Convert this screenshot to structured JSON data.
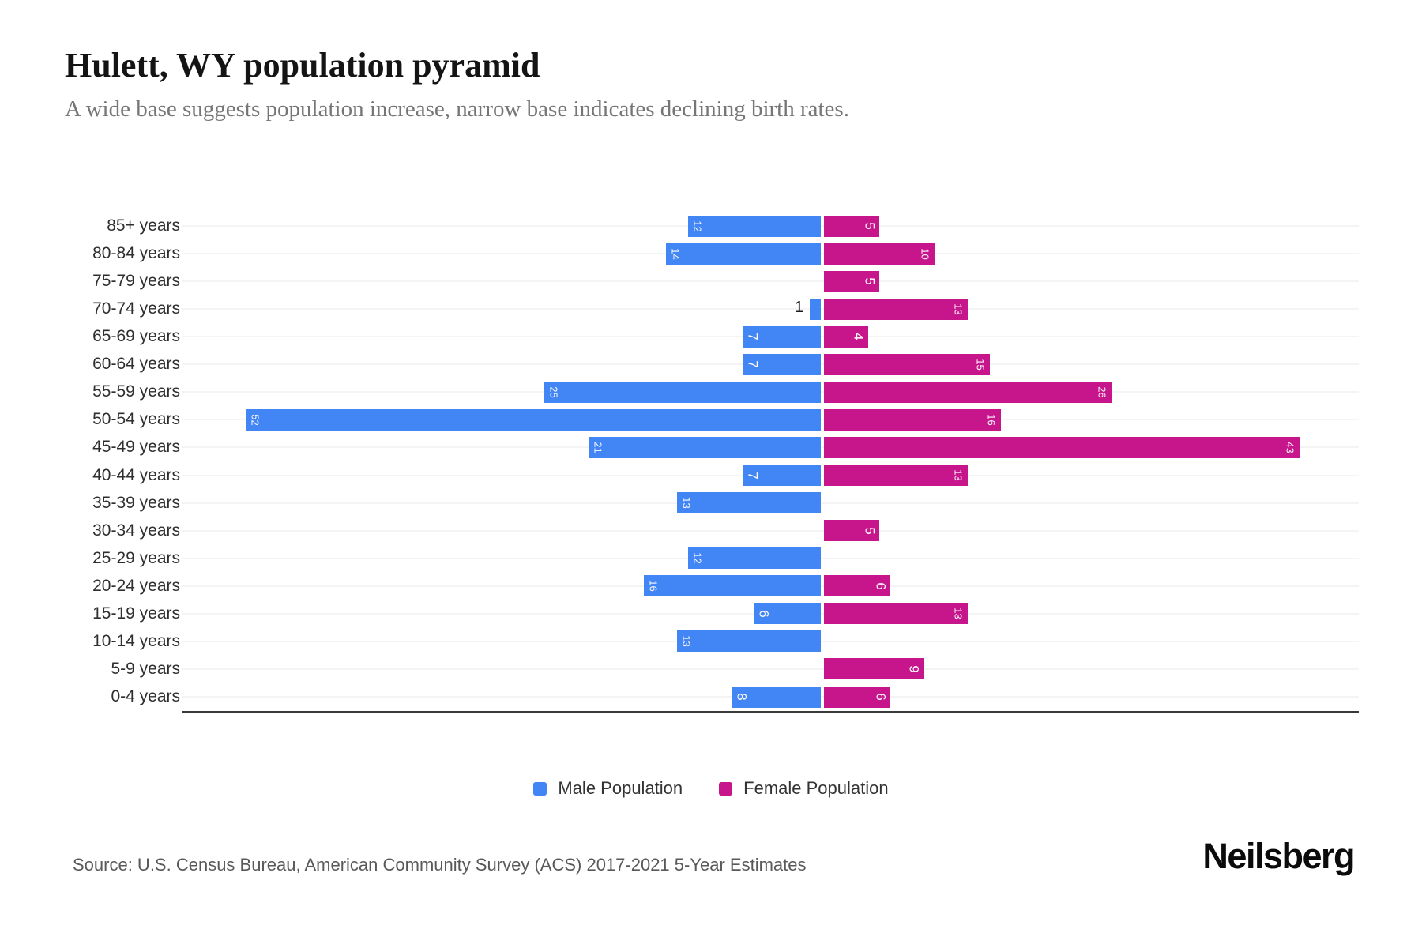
{
  "header": {
    "title": "Hulett, WY population pyramid",
    "subtitle": "A wide base suggests population increase, narrow base indicates declining birth rates."
  },
  "chart_data": {
    "type": "bar",
    "variant": "population-pyramid",
    "orientation": "horizontal, male bars extend left and female bars extend right from a central zero axis",
    "categories": [
      "85+ years",
      "80-84 years",
      "75-79 years",
      "70-74 years",
      "65-69 years",
      "60-64 years",
      "55-59 years",
      "50-54 years",
      "45-49 years",
      "40-44 years",
      "35-39 years",
      "30-34 years",
      "25-29 years",
      "20-24 years",
      "15-19 years",
      "10-14 years",
      "5-9 years",
      "0-4 years"
    ],
    "series": [
      {
        "name": "Male Population",
        "color": "#4285F4",
        "values": [
          12,
          14,
          0,
          1,
          7,
          7,
          25,
          52,
          21,
          7,
          13,
          0,
          12,
          16,
          6,
          13,
          0,
          8
        ]
      },
      {
        "name": "Female Population",
        "color": "#C7168C",
        "values": [
          5,
          10,
          5,
          13,
          4,
          15,
          26,
          16,
          43,
          13,
          0,
          5,
          0,
          6,
          13,
          0,
          9,
          6
        ]
      }
    ],
    "grid": true,
    "x_axis_tick_labels": "none shown",
    "legend_position": "bottom",
    "bar_labels": "value at outer end of each bar, rotated 90 degrees, white; zero-value bars omitted; male value 1 drawn outside the bar in black"
  },
  "footer": {
    "source": "Source: U.S. Census Bureau, American Community Survey (ACS) 2017-2021 5-Year Estimates",
    "brand": "Neilsberg"
  }
}
